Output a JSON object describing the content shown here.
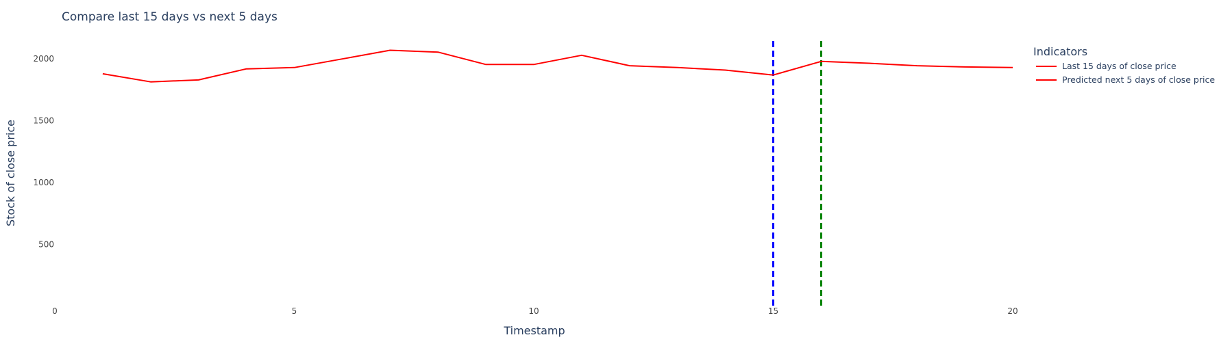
{
  "chart_data": {
    "type": "line",
    "title": "Compare last 15 days vs next 5 days",
    "xlabel": "Timestamp",
    "ylabel": "Stock of close price",
    "xlim": [
      0,
      20
    ],
    "ylim": [
      0,
      2200
    ],
    "x_ticks": [
      0,
      5,
      10,
      15,
      20
    ],
    "y_ticks": [
      500,
      1000,
      1500,
      2000
    ],
    "grid": false,
    "legend": {
      "title": "Indicators",
      "placement": "top-right",
      "entries": [
        "Last 15 days of close price",
        "Predicted next 5 days of close price"
      ]
    },
    "series": [
      {
        "name": "Last 15 days of close price",
        "color": "#ff0000",
        "x": [
          1,
          2,
          3,
          4,
          5,
          6,
          7,
          8,
          9,
          10,
          11,
          12,
          13,
          14,
          15
        ],
        "y": [
          1880,
          1815,
          1830,
          1920,
          1930,
          2000,
          2070,
          2055,
          1955,
          1955,
          2030,
          1945,
          1930,
          1910,
          1870
        ]
      },
      {
        "name": "Predicted next 5 days of close price",
        "color": "#ff0000",
        "x": [
          15,
          16,
          17,
          18,
          19,
          20
        ],
        "y": [
          1870,
          1980,
          1965,
          1945,
          1935,
          1930
        ]
      }
    ],
    "vertical_lines": [
      {
        "x": 15,
        "color": "#0000ff",
        "style": "dashed"
      },
      {
        "x": 16,
        "color": "#008000",
        "style": "dashed"
      }
    ]
  }
}
